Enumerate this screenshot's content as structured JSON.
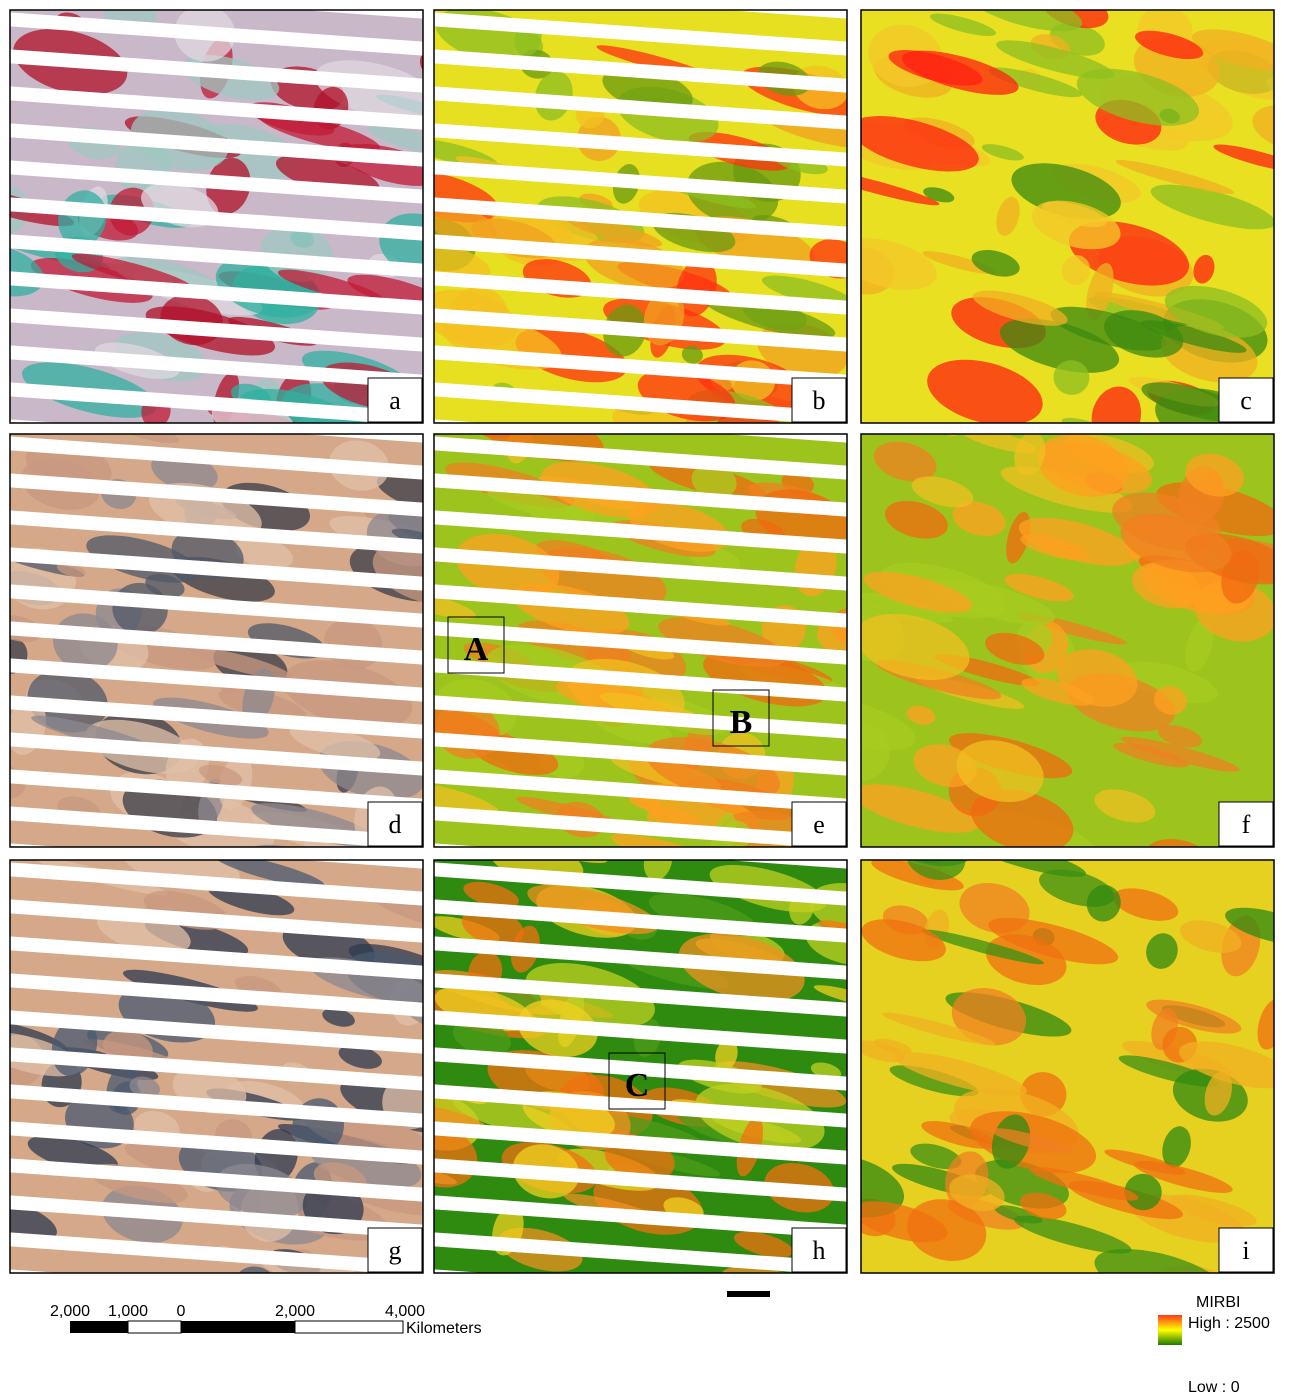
{
  "panels": [
    {
      "label": "a"
    },
    {
      "label": "b"
    },
    {
      "label": "c"
    },
    {
      "label": "d"
    },
    {
      "label": "e"
    },
    {
      "label": "f"
    },
    {
      "label": "g"
    },
    {
      "label": "h"
    },
    {
      "label": "i"
    }
  ],
  "boxes": [
    {
      "label": "A"
    },
    {
      "label": "B"
    },
    {
      "label": "C"
    }
  ],
  "scale_bar": {
    "ticks": [
      "2,000",
      "1,000",
      "0",
      "2,000",
      "4,000"
    ],
    "unit": "Kilometers"
  },
  "legend": {
    "title": "MIRBI",
    "high": "High : 2500",
    "low": "Low : 0"
  }
}
